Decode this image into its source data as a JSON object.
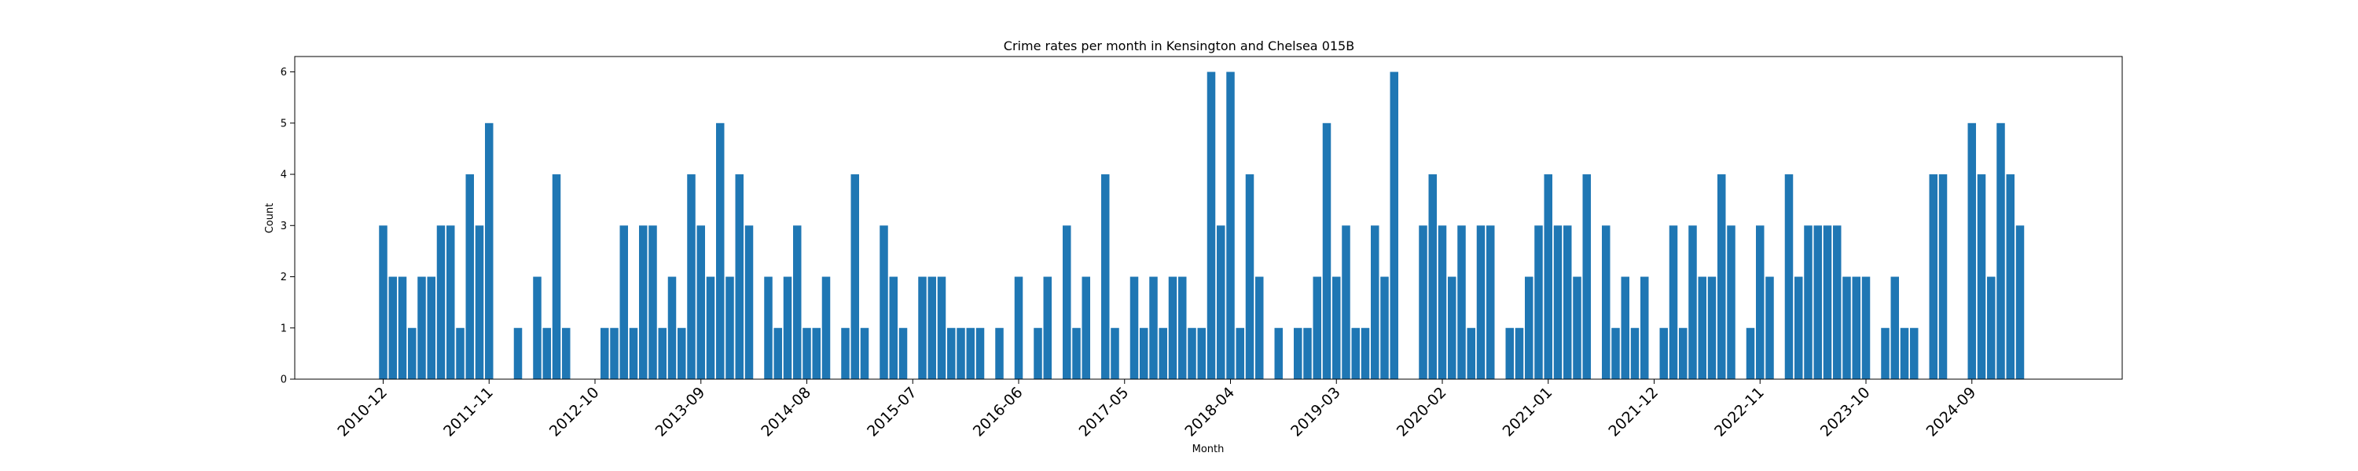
{
  "chart_data": {
    "type": "bar",
    "title": "Crime rates per month in Kensington and Chelsea 015B",
    "xlabel": "Month",
    "ylabel": "Count",
    "ylim": [
      0,
      6.3
    ],
    "yticks": [
      "0",
      "1",
      "2",
      "3",
      "4",
      "5",
      "6"
    ],
    "grid": false,
    "color": "#1f77b4",
    "xtick_labels": [
      "2010-12",
      "2011-11",
      "2012-10",
      "2013-09",
      "2014-08",
      "2015-07",
      "2016-06",
      "2017-05",
      "2018-04",
      "2019-03",
      "2020-02",
      "2021-01",
      "2021-12",
      "2022-11",
      "2023-10",
      "2024-09"
    ],
    "start_month": "2010-12",
    "values": [
      3,
      2,
      2,
      1,
      2,
      2,
      3,
      3,
      1,
      4,
      3,
      5,
      0,
      0,
      1,
      0,
      2,
      1,
      4,
      1,
      0,
      0,
      0,
      1,
      1,
      3,
      1,
      3,
      3,
      1,
      2,
      1,
      4,
      3,
      2,
      5,
      2,
      4,
      3,
      0,
      2,
      1,
      2,
      3,
      1,
      1,
      2,
      0,
      1,
      4,
      1,
      0,
      3,
      2,
      1,
      0,
      2,
      2,
      2,
      1,
      1,
      1,
      1,
      0,
      1,
      0,
      2,
      0,
      1,
      2,
      0,
      3,
      1,
      2,
      0,
      4,
      1,
      0,
      2,
      1,
      2,
      1,
      2,
      2,
      1,
      1,
      6,
      3,
      6,
      1,
      4,
      2,
      0,
      1,
      0,
      1,
      1,
      2,
      5,
      2,
      3,
      1,
      1,
      3,
      2,
      6,
      0,
      0,
      3,
      4,
      3,
      2,
      3,
      1,
      3,
      3,
      0,
      1,
      1,
      2,
      3,
      4,
      3,
      3,
      2,
      4,
      0,
      3,
      1,
      2,
      1,
      2,
      0,
      1,
      3,
      1,
      3,
      2,
      2,
      4,
      3,
      0,
      1,
      3,
      2,
      0,
      4,
      2,
      3,
      3,
      3,
      3,
      2,
      2,
      2,
      0,
      1,
      2,
      1,
      1,
      0,
      4,
      4,
      0,
      0,
      5,
      4,
      2,
      5,
      4,
      3
    ]
  }
}
